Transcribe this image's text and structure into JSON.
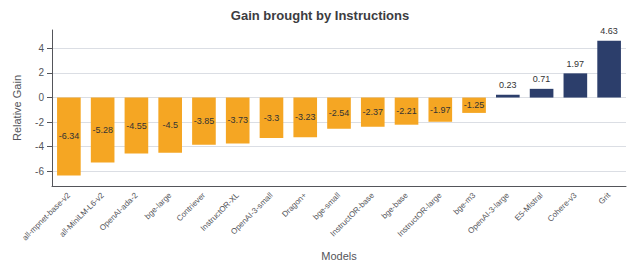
{
  "chart_data": {
    "type": "bar",
    "title": "Gain brought by Instructions",
    "xlabel": "Models",
    "ylabel": "Relative Gain",
    "categories": [
      "all-mpnet-base-v2",
      "all-MiniLM-L6-v2",
      "OpenAI-ada-2",
      "bge-large",
      "Contriever",
      "InstructOR-XL",
      "OpenAI-3-small",
      "Dragon+",
      "bge-small",
      "InstructOR-base",
      "bge-base",
      "InstructOR-large",
      "bge-m3",
      "OpenAI-3-large",
      "E5-Mistral",
      "Cohere-v3",
      "Grit"
    ],
    "values": [
      -6.34,
      -5.28,
      -4.55,
      -4.5,
      -3.85,
      -3.73,
      -3.3,
      -3.23,
      -2.54,
      -2.37,
      -2.21,
      -1.97,
      -1.25,
      0.23,
      0.71,
      1.97,
      4.63
    ],
    "colors": [
      "#F5A623",
      "#F5A623",
      "#F5A623",
      "#F5A623",
      "#F5A623",
      "#F5A623",
      "#F5A623",
      "#F5A623",
      "#F5A623",
      "#F5A623",
      "#F5A623",
      "#F5A623",
      "#F5A623",
      "#2C3E6B",
      "#2C3E6B",
      "#2C3E6B",
      "#2C3E6B"
    ],
    "ylim": [
      -7.2,
      5.5
    ],
    "yticks": [
      -6,
      -4,
      -2,
      0,
      2,
      4
    ],
    "grid": true,
    "data_labels": true
  }
}
